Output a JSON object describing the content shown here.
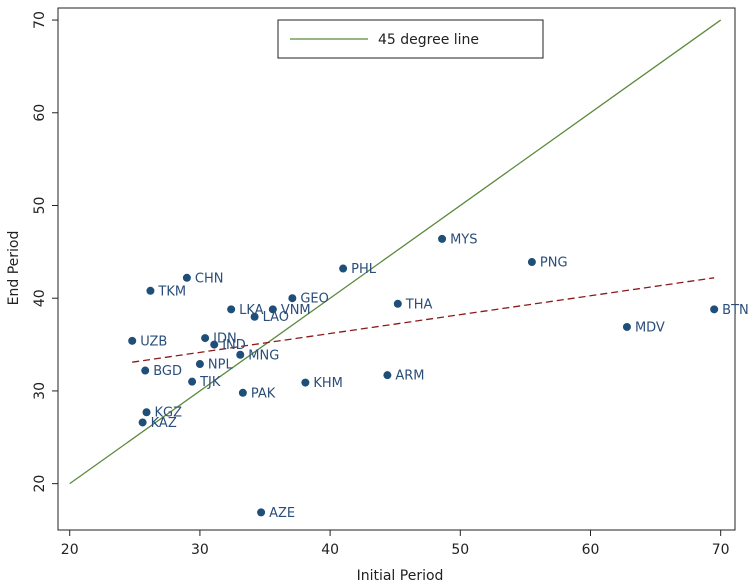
{
  "chart_data": {
    "type": "scatter",
    "xlabel": "Initial Period",
    "ylabel": "End Period",
    "labels": [
      "MYS",
      "PNG",
      "PHL",
      "BTN",
      "MDV",
      "THA",
      "GEO",
      "VNM",
      "LKA",
      "LAO",
      "CHN",
      "TKM",
      "UZB",
      "IDN",
      "IND",
      "MNG",
      "NPL",
      "BGD",
      "TJK",
      "PAK",
      "KHM",
      "ARM",
      "KGZ",
      "KAZ",
      "AZE"
    ],
    "x": [
      48.6,
      55.5,
      41.0,
      69.5,
      62.8,
      45.2,
      37.1,
      35.6,
      32.4,
      34.2,
      29.0,
      26.2,
      24.8,
      30.4,
      31.1,
      33.1,
      30.0,
      25.8,
      29.4,
      33.3,
      38.1,
      44.4,
      25.9,
      25.6,
      34.7
    ],
    "y": [
      46.4,
      43.9,
      43.2,
      38.8,
      36.9,
      39.4,
      40.0,
      38.8,
      38.8,
      38.0,
      42.2,
      40.8,
      35.4,
      35.7,
      35.0,
      33.9,
      32.9,
      32.2,
      31.0,
      29.8,
      30.9,
      31.7,
      27.7,
      26.6,
      16.9
    ],
    "color": "#1f4e79",
    "lines": [
      {
        "name": "45 degree line",
        "color": "#5a8a3c",
        "x": [
          20,
          70
        ],
        "y": [
          20,
          70
        ]
      },
      {
        "color": "#8b1a1a",
        "dashed": true,
        "x": [
          24.8,
          69.5
        ],
        "y": [
          33.1,
          42.2
        ]
      }
    ],
    "xlim": [
      19.1,
      71.1
    ],
    "ylim": [
      15,
      71.3
    ],
    "xticks": [
      20,
      30,
      40,
      50,
      60,
      70
    ],
    "yticks": [
      20,
      30,
      40,
      50,
      60,
      70
    ]
  }
}
